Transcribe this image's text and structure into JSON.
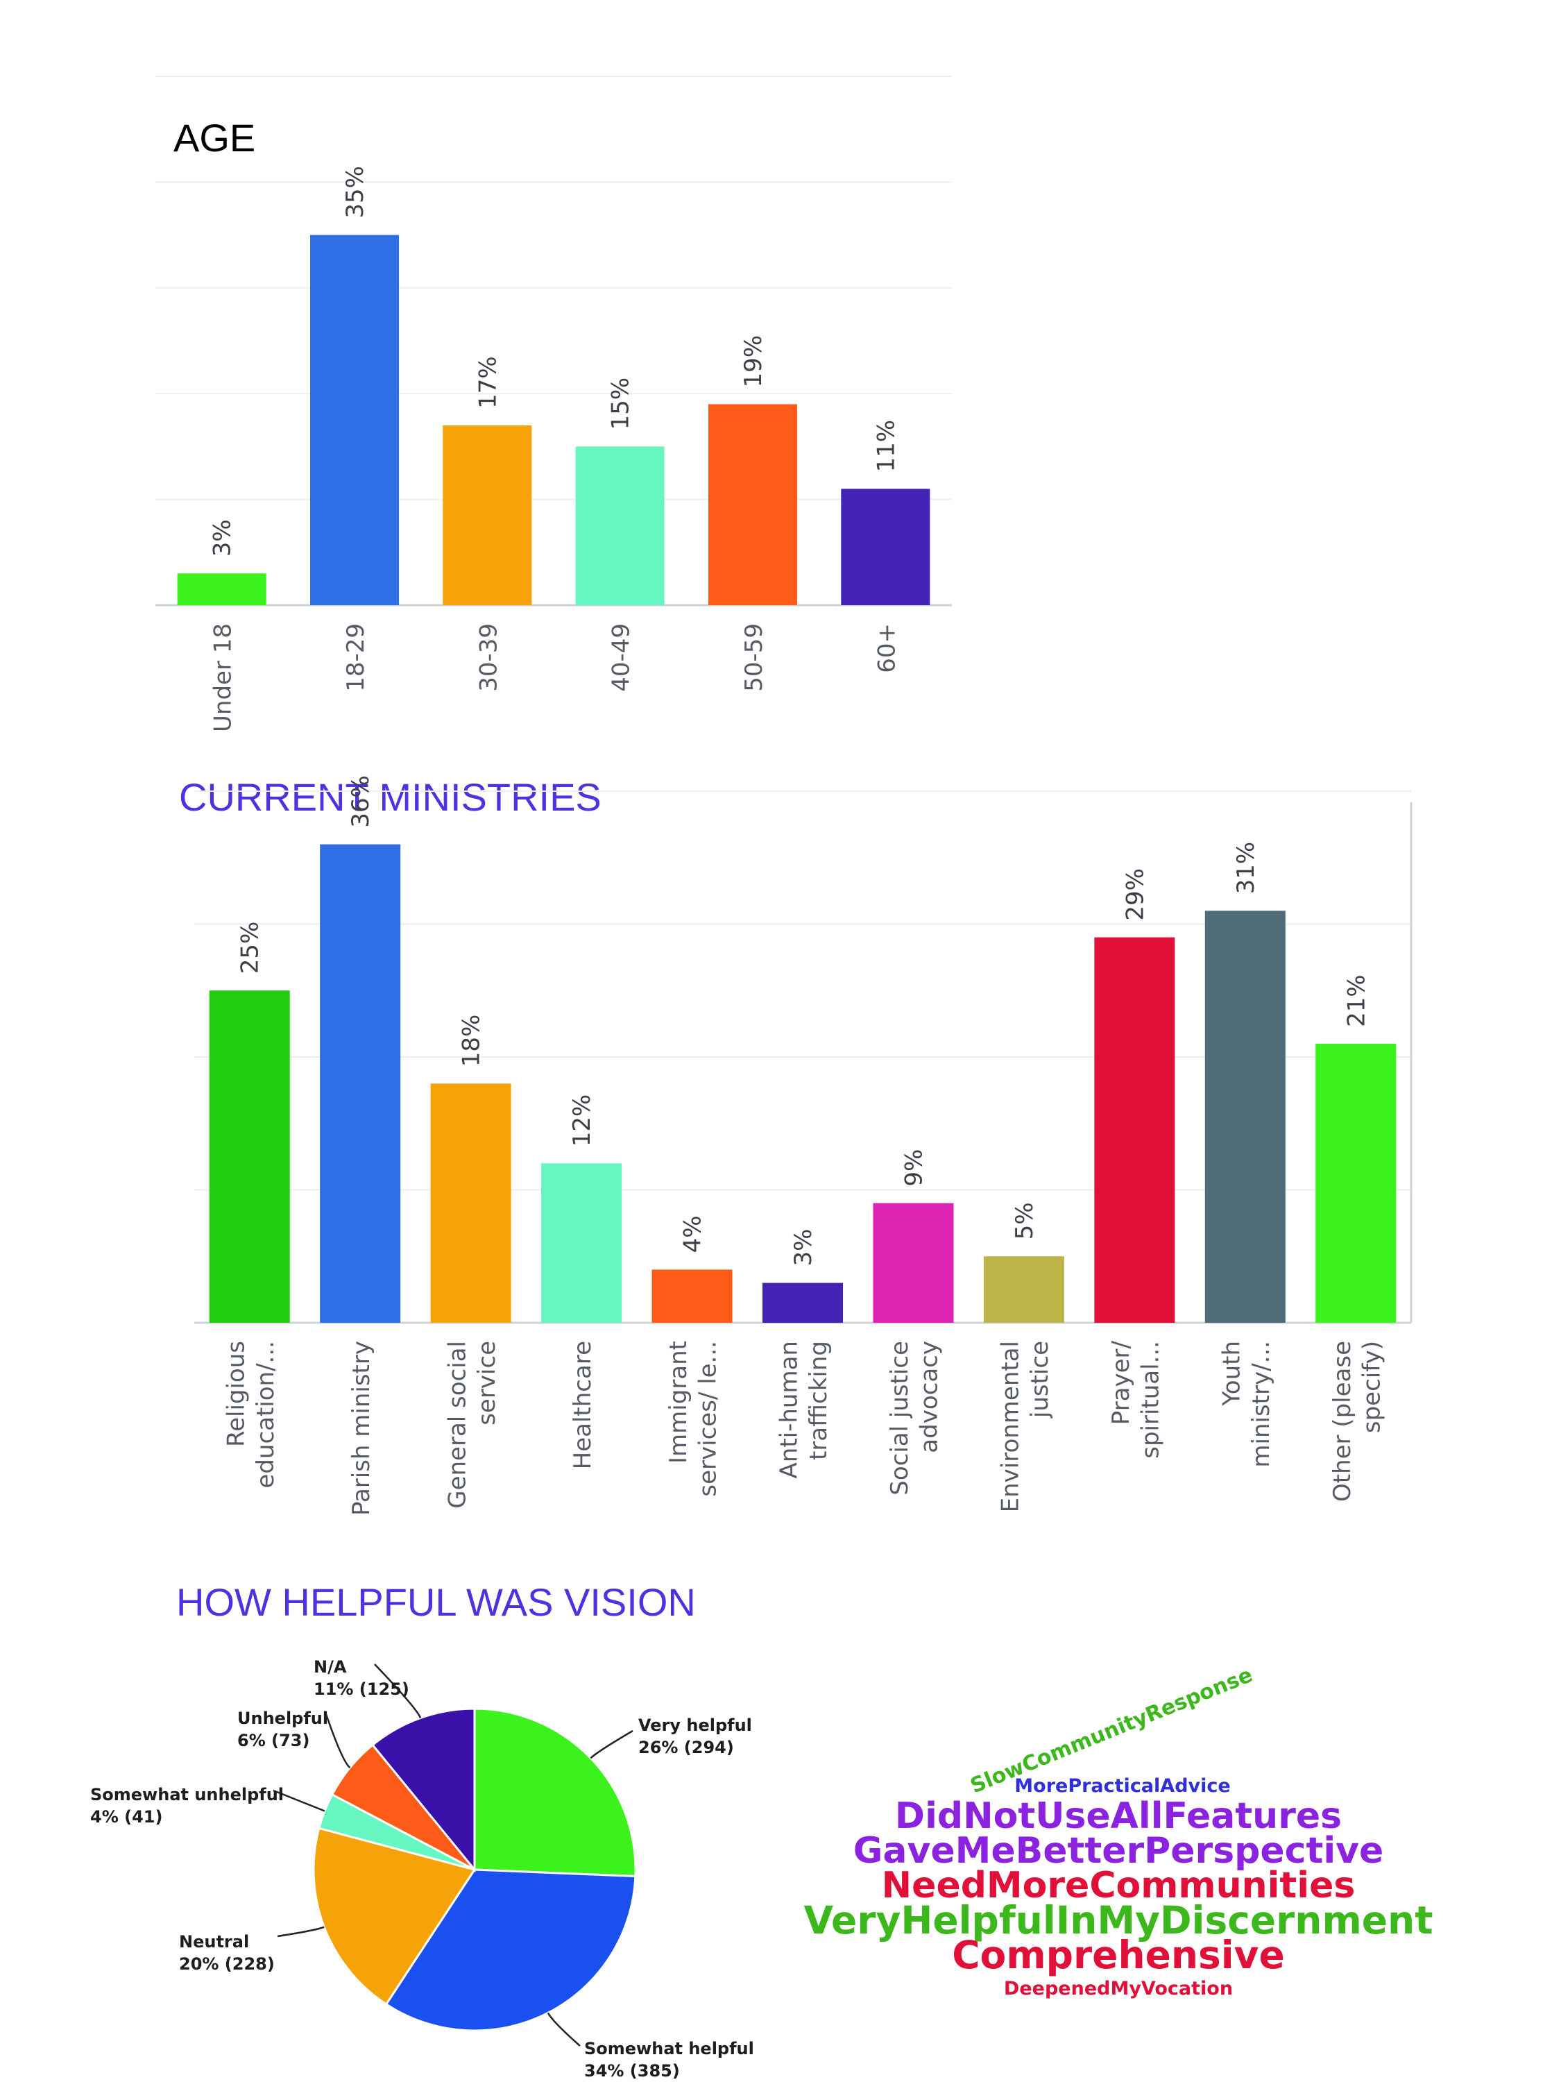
{
  "chart_data": [
    {
      "type": "bar",
      "title": "AGE",
      "title_color": "#000000",
      "categories": [
        "Under 18",
        "18-29",
        "30-39",
        "40-49",
        "50-59",
        "60+"
      ],
      "values": [
        3,
        35,
        17,
        15,
        19,
        11
      ],
      "data_labels": [
        "3%",
        "35%",
        "17%",
        "15%",
        "19%",
        "11%"
      ],
      "colors": [
        "#3cf21c",
        "#2f6fe6",
        "#f6a30a",
        "#66f6c2",
        "#fe5a18",
        "#4323b4"
      ],
      "ylim": [
        0,
        50
      ],
      "grid": true,
      "xlabel": "",
      "ylabel": ""
    },
    {
      "type": "bar",
      "title": "CURRENT MINISTRIES",
      "title_color": "#5030e0",
      "categories": [
        [
          "Religious",
          "education/..."
        ],
        [
          "Parish ministry"
        ],
        [
          "General social",
          "service"
        ],
        [
          "Healthcare"
        ],
        [
          "Immigrant",
          "services/ le..."
        ],
        [
          "Anti-human",
          "trafficking"
        ],
        [
          "Social justice",
          "advocacy"
        ],
        [
          "Environmental",
          "justice"
        ],
        [
          "Prayer/",
          "spiritual..."
        ],
        [
          "Youth",
          "ministry/..."
        ],
        [
          "Other (please",
          "specify)"
        ]
      ],
      "values": [
        25,
        36,
        18,
        12,
        4,
        3,
        9,
        5,
        29,
        31,
        21
      ],
      "data_labels": [
        "25%",
        "36%",
        "18%",
        "12%",
        "4%",
        "3%",
        "9%",
        "5%",
        "29%",
        "31%",
        "21%"
      ],
      "colors": [
        "#22cc0e",
        "#2f6fe6",
        "#f6a30a",
        "#66f6c2",
        "#fe5a18",
        "#4323b4",
        "#de22b2",
        "#bdb447",
        "#e20f37",
        "#4f6c78",
        "#3cf21c"
      ],
      "ylim": [
        0,
        40
      ],
      "grid": true,
      "xlabel": "",
      "ylabel": ""
    },
    {
      "type": "pie",
      "title": "HOW HELPFUL WAS VISION",
      "title_color": "#5030e0",
      "slices": [
        {
          "label": "Very helpful",
          "percent": "26%",
          "count": 294,
          "color": "#3cf21c"
        },
        {
          "label": "Somewhat helpful",
          "percent": "34%",
          "count": 385,
          "color": "#1a4ff0"
        },
        {
          "label": "Neutral",
          "percent": "20%",
          "count": 228,
          "color": "#f6a30a"
        },
        {
          "label": "Somewhat unhelpful",
          "percent": "4%",
          "count": 41,
          "color": "#66f6c2"
        },
        {
          "label": "Unhelpful",
          "percent": "6%",
          "count": 73,
          "color": "#fe5a18"
        },
        {
          "label": "N/A",
          "percent": "11%",
          "count": 125,
          "color": "#3a10a8"
        }
      ]
    }
  ],
  "word_cloud": {
    "words": [
      {
        "text": "SlowCommunityResponse",
        "color": "#3cb71c",
        "rotated": true
      },
      {
        "text": "MorePracticalAdvice",
        "color": "#3030d8"
      },
      {
        "text": "DidNotUseAllFeatures",
        "color": "#8a22e0"
      },
      {
        "text": "GaveMeBetterPerspective",
        "color": "#8a22e0"
      },
      {
        "text": "NeedMoreCommunities",
        "color": "#e01038"
      },
      {
        "text": "VeryHelpfulInMyDiscernment",
        "color": "#3cb71c"
      },
      {
        "text": "Comprehensive",
        "color": "#e01038"
      },
      {
        "text": "DeepenedMyVocation",
        "color": "#e01038"
      }
    ]
  }
}
